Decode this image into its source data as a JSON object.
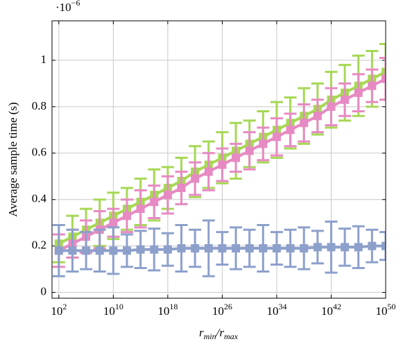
{
  "chart_data": {
    "type": "errorbar-line",
    "ylabel": "Average sample time (s)",
    "xlabel": [
      "r",
      "min",
      "/r",
      "max"
    ],
    "y_multiplier": {
      "base": "·10",
      "exponent": "−6"
    },
    "xscale": "log",
    "grid": true,
    "x": [
      100.0,
      10000.0,
      1000000.0,
      100000000.0,
      10000000000.0,
      1000000000000.0,
      100000000000000.0,
      1e+16,
      1e+18,
      1e+20,
      1e+22,
      1e+24,
      1e+26,
      1e+28,
      1e+30,
      1e+32,
      1e+34,
      1e+36,
      1e+38,
      1e+40,
      1e+42,
      1e+44,
      1e+46,
      1e+48,
      1e+50
    ],
    "xlim": [
      10.0,
      1e+50
    ],
    "xticks": [
      {
        "value": 100.0,
        "label": "10",
        "exponent": "2"
      },
      {
        "value": 10000000000.0,
        "label": "10",
        "exponent": "10"
      },
      {
        "value": 1e+18,
        "label": "10",
        "exponent": "18"
      },
      {
        "value": 1e+26,
        "label": "10",
        "exponent": "26"
      },
      {
        "value": 1e+34,
        "label": "10",
        "exponent": "34"
      },
      {
        "value": 1e+42,
        "label": "10",
        "exponent": "42"
      },
      {
        "value": 1e+50,
        "label": "10",
        "exponent": "50"
      }
    ],
    "ylim": [
      -0.025,
      1.17
    ],
    "yticks": [
      0,
      0.2,
      0.4,
      0.6,
      0.8,
      1
    ],
    "series": [
      {
        "color": "#a6d854",
        "values": [
          0.21,
          0.24,
          0.27,
          0.3,
          0.33,
          0.36,
          0.39,
          0.42,
          0.45,
          0.48,
          0.52,
          0.55,
          0.58,
          0.61,
          0.64,
          0.67,
          0.7,
          0.73,
          0.76,
          0.79,
          0.83,
          0.86,
          0.89,
          0.92,
          0.95
        ],
        "errors": [
          0.08,
          0.09,
          0.09,
          0.1,
          0.1,
          0.09,
          0.1,
          0.11,
          0.09,
          0.1,
          0.11,
          0.1,
          0.11,
          0.12,
          0.1,
          0.11,
          0.12,
          0.11,
          0.12,
          0.11,
          0.12,
          0.12,
          0.13,
          0.12,
          0.12
        ]
      },
      {
        "color": "#e78ac3",
        "values": [
          0.18,
          0.21,
          0.24,
          0.27,
          0.3,
          0.33,
          0.36,
          0.39,
          0.42,
          0.45,
          0.49,
          0.52,
          0.55,
          0.58,
          0.61,
          0.64,
          0.67,
          0.7,
          0.73,
          0.76,
          0.8,
          0.83,
          0.86,
          0.89,
          0.92
        ],
        "errors": [
          0.07,
          0.06,
          0.07,
          0.08,
          0.06,
          0.07,
          0.08,
          0.07,
          0.08,
          0.07,
          0.07,
          0.08,
          0.07,
          0.06,
          0.08,
          0.07,
          0.08,
          0.07,
          0.08,
          0.07,
          0.08,
          0.07,
          0.08,
          0.07,
          0.09
        ]
      },
      {
        "color": "#8da0cb",
        "values": [
          0.18,
          0.18,
          0.18,
          0.18,
          0.18,
          0.18,
          0.185,
          0.185,
          0.185,
          0.19,
          0.19,
          0.19,
          0.19,
          0.19,
          0.19,
          0.19,
          0.19,
          0.19,
          0.19,
          0.195,
          0.195,
          0.195,
          0.195,
          0.2,
          0.2
        ],
        "errors": [
          0.11,
          0.09,
          0.08,
          0.09,
          0.1,
          0.07,
          0.08,
          0.09,
          0.07,
          0.1,
          0.08,
          0.12,
          0.07,
          0.09,
          0.08,
          0.1,
          0.07,
          0.08,
          0.09,
          0.07,
          0.11,
          0.08,
          0.09,
          0.07,
          0.06
        ]
      }
    ]
  }
}
